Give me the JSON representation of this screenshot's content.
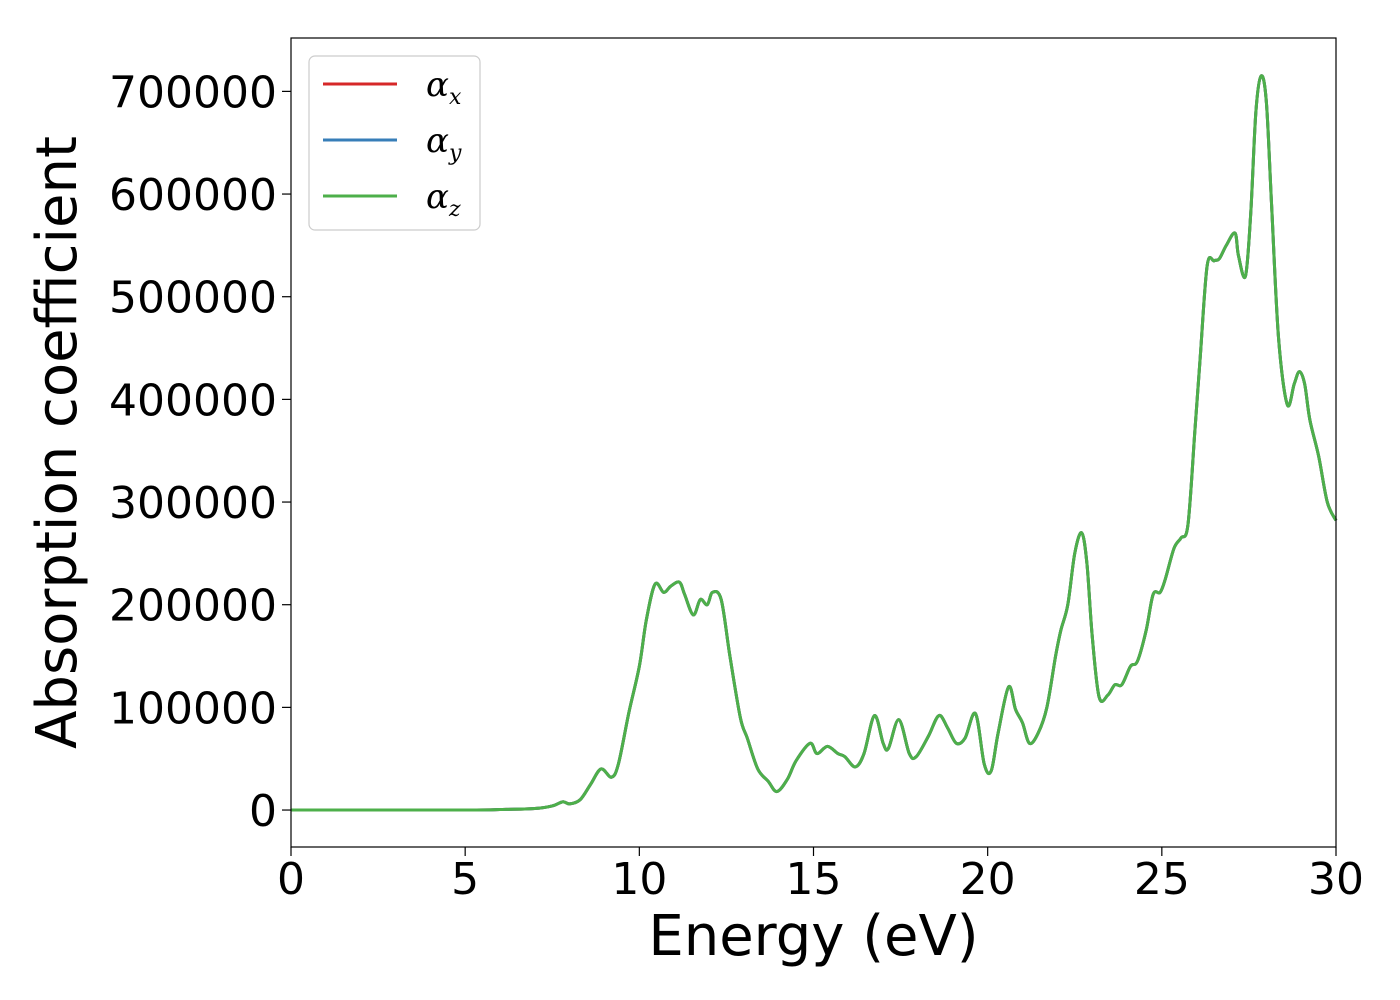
{
  "chart_data": {
    "type": "line",
    "xlabel": "Energy (eV)",
    "ylabel": "Absorption coefficient",
    "xlim": [
      0,
      30
    ],
    "ylim": [
      -36000,
      752000
    ],
    "xticks": [
      0,
      5,
      10,
      15,
      20,
      25,
      30
    ],
    "xtick_labels": [
      "0",
      "5",
      "10",
      "15",
      "20",
      "25",
      "30"
    ],
    "yticks": [
      0,
      100000,
      200000,
      300000,
      400000,
      500000,
      600000,
      700000
    ],
    "ytick_labels": [
      "0",
      "100000",
      "200000",
      "300000",
      "400000",
      "500000",
      "600000",
      "700000"
    ],
    "grid": false,
    "legend_position": "top-left",
    "x": [
      0,
      5,
      6,
      7,
      7.5,
      7.8,
      8.0,
      8.3,
      8.6,
      8.9,
      9.2,
      9.4,
      9.7,
      10.0,
      10.2,
      10.45,
      10.7,
      10.9,
      11.15,
      11.3,
      11.55,
      11.75,
      11.95,
      12.1,
      12.35,
      12.6,
      12.9,
      13.1,
      13.4,
      13.7,
      13.95,
      14.25,
      14.5,
      14.9,
      15.1,
      15.4,
      15.7,
      15.9,
      16.2,
      16.45,
      16.75,
      17.0,
      17.15,
      17.45,
      17.75,
      17.95,
      18.3,
      18.6,
      18.85,
      19.1,
      19.35,
      19.65,
      19.9,
      20.1,
      20.3,
      20.6,
      20.8,
      21.0,
      21.2,
      21.45,
      21.7,
      21.95,
      22.1,
      22.3,
      22.5,
      22.7,
      22.85,
      23.0,
      23.2,
      23.45,
      23.65,
      23.85,
      24.1,
      24.3,
      24.55,
      24.75,
      24.95,
      25.1,
      25.35,
      25.55,
      25.75,
      25.95,
      26.1,
      26.3,
      26.5,
      26.65,
      26.85,
      27.1,
      27.2,
      27.4,
      27.55,
      27.7,
      27.85,
      28.0,
      28.15,
      28.35,
      28.6,
      28.8,
      28.95,
      29.1,
      29.25,
      29.5,
      29.75,
      30.0
    ],
    "series": [
      {
        "name": "α_x",
        "color": "#d62728",
        "values": [
          0,
          100,
          500,
          1500,
          4000,
          8000,
          6000,
          10000,
          25000,
          40000,
          32000,
          45000,
          95000,
          140000,
          185000,
          220000,
          212000,
          218000,
          222000,
          210000,
          190000,
          205000,
          200000,
          212000,
          205000,
          150000,
          90000,
          70000,
          40000,
          28000,
          18000,
          30000,
          48000,
          65000,
          55000,
          62000,
          55000,
          52000,
          42000,
          55000,
          92000,
          65000,
          60000,
          88000,
          55000,
          52000,
          72000,
          92000,
          80000,
          65000,
          70000,
          94000,
          45000,
          38000,
          75000,
          120000,
          98000,
          85000,
          65000,
          75000,
          100000,
          150000,
          175000,
          200000,
          250000,
          270000,
          240000,
          170000,
          110000,
          112000,
          122000,
          122000,
          140000,
          145000,
          175000,
          210000,
          212000,
          225000,
          255000,
          265000,
          278000,
          370000,
          440000,
          530000,
          535000,
          537000,
          550000,
          562000,
          540000,
          520000,
          580000,
          680000,
          715000,
          690000,
          590000,
          460000,
          395000,
          415000,
          427000,
          415000,
          380000,
          345000,
          300000,
          282000
        ]
      },
      {
        "name": "α_y",
        "color": "#377eb8",
        "values": [
          0,
          100,
          500,
          1500,
          4000,
          8000,
          6000,
          10000,
          25000,
          40000,
          32000,
          45000,
          95000,
          140000,
          185000,
          220000,
          212000,
          218000,
          222000,
          210000,
          190000,
          205000,
          200000,
          212000,
          205000,
          150000,
          90000,
          70000,
          40000,
          28000,
          18000,
          30000,
          48000,
          65000,
          55000,
          62000,
          55000,
          52000,
          42000,
          55000,
          92000,
          65000,
          60000,
          88000,
          55000,
          52000,
          72000,
          92000,
          80000,
          65000,
          70000,
          94000,
          45000,
          38000,
          75000,
          120000,
          98000,
          85000,
          65000,
          75000,
          100000,
          150000,
          175000,
          200000,
          250000,
          270000,
          240000,
          170000,
          110000,
          112000,
          122000,
          122000,
          140000,
          145000,
          175000,
          210000,
          212000,
          225000,
          255000,
          265000,
          278000,
          370000,
          440000,
          530000,
          535000,
          537000,
          550000,
          562000,
          540000,
          520000,
          580000,
          680000,
          715000,
          690000,
          590000,
          460000,
          395000,
          415000,
          427000,
          415000,
          380000,
          345000,
          300000,
          282000
        ]
      },
      {
        "name": "α_z",
        "color": "#4daf4a",
        "values": [
          0,
          100,
          500,
          1500,
          4000,
          8000,
          6000,
          10000,
          25000,
          40000,
          32000,
          45000,
          95000,
          140000,
          185000,
          220000,
          212000,
          218000,
          222000,
          210000,
          190000,
          205000,
          200000,
          212000,
          205000,
          150000,
          90000,
          70000,
          40000,
          28000,
          18000,
          30000,
          48000,
          65000,
          55000,
          62000,
          55000,
          52000,
          42000,
          55000,
          92000,
          65000,
          60000,
          88000,
          55000,
          52000,
          72000,
          92000,
          80000,
          65000,
          70000,
          94000,
          45000,
          38000,
          75000,
          120000,
          98000,
          85000,
          65000,
          75000,
          100000,
          150000,
          175000,
          200000,
          250000,
          270000,
          240000,
          170000,
          110000,
          112000,
          122000,
          122000,
          140000,
          145000,
          175000,
          210000,
          212000,
          225000,
          255000,
          265000,
          278000,
          370000,
          440000,
          530000,
          535000,
          537000,
          550000,
          562000,
          540000,
          520000,
          580000,
          680000,
          715000,
          690000,
          590000,
          460000,
          395000,
          415000,
          427000,
          415000,
          380000,
          345000,
          300000,
          282000
        ]
      }
    ],
    "legend": [
      {
        "symbol": "α",
        "sub": "x"
      },
      {
        "symbol": "α",
        "sub": "y"
      },
      {
        "symbol": "α",
        "sub": "z"
      }
    ]
  }
}
